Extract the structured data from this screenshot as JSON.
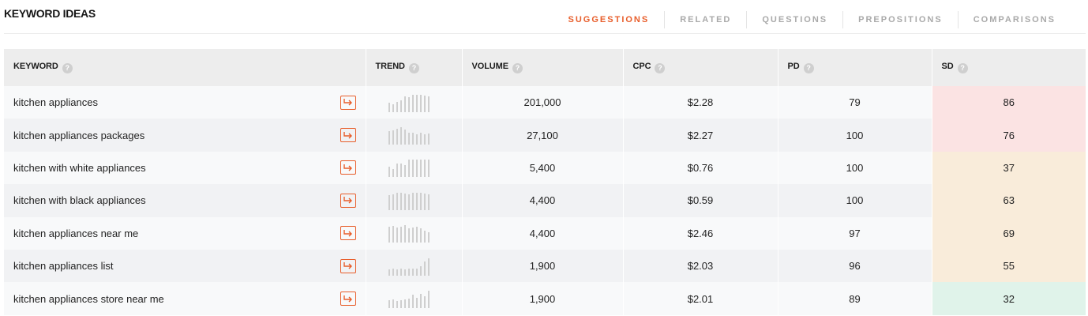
{
  "header": {
    "title": "KEYWORD IDEAS",
    "tabs": [
      {
        "label": "SUGGESTIONS",
        "active": true
      },
      {
        "label": "RELATED",
        "active": false
      },
      {
        "label": "QUESTIONS",
        "active": false
      },
      {
        "label": "PREPOSITIONS",
        "active": false
      },
      {
        "label": "COMPARISONS",
        "active": false
      }
    ]
  },
  "colors": {
    "accent": "#e85d2a",
    "sd_hard": "#fbe3e3",
    "sd_medium": "#f9ecda",
    "sd_easy": "#e0f3ea"
  },
  "table": {
    "columns": [
      {
        "label": "KEYWORD",
        "help_icon": "help-icon"
      },
      {
        "label": "TREND",
        "help_icon": "help-icon"
      },
      {
        "label": "VOLUME",
        "help_icon": "help-icon"
      },
      {
        "label": "CPC",
        "help_icon": "help-icon"
      },
      {
        "label": "PD",
        "help_icon": "help-icon"
      },
      {
        "label": "SD",
        "help_icon": "help-icon"
      }
    ],
    "rows": [
      {
        "keyword": "kitchen appliances",
        "link_icon": "open-arrow-icon",
        "trend": [
          0.55,
          0.45,
          0.6,
          0.7,
          0.9,
          0.85,
          1.0,
          1.0,
          1.0,
          0.95,
          0.9
        ],
        "volume": "201,000",
        "cpc": "$2.28",
        "pd": "79",
        "sd": "86",
        "sd_color": "#fbe3e3"
      },
      {
        "keyword": "kitchen appliances packages",
        "link_icon": "open-arrow-icon",
        "trend": [
          0.75,
          0.8,
          0.9,
          1.0,
          0.85,
          0.7,
          0.7,
          0.6,
          0.7,
          0.6,
          0.65
        ],
        "volume": "27,100",
        "cpc": "$2.27",
        "pd": "100",
        "sd": "76",
        "sd_color": "#fbe3e3"
      },
      {
        "keyword": "kitchen with white appliances",
        "link_icon": "open-arrow-icon",
        "trend": [
          0.6,
          0.45,
          0.75,
          0.75,
          0.7,
          1.0,
          1.0,
          1.0,
          1.0,
          1.0,
          1.0
        ],
        "volume": "5,400",
        "cpc": "$0.76",
        "pd": "100",
        "sd": "37",
        "sd_color": "#f9ecda"
      },
      {
        "keyword": "kitchen with black appliances",
        "link_icon": "open-arrow-icon",
        "trend": [
          0.85,
          0.9,
          1.0,
          1.0,
          0.95,
          0.9,
          1.0,
          1.0,
          1.0,
          0.95,
          0.9
        ],
        "volume": "4,400",
        "cpc": "$0.59",
        "pd": "100",
        "sd": "63",
        "sd_color": "#f9ecda"
      },
      {
        "keyword": "kitchen appliances near me",
        "link_icon": "open-arrow-icon",
        "trend": [
          0.9,
          0.95,
          0.85,
          0.9,
          1.0,
          0.8,
          0.85,
          0.9,
          0.8,
          0.7,
          0.6
        ],
        "volume": "4,400",
        "cpc": "$2.46",
        "pd": "97",
        "sd": "69",
        "sd_color": "#f9ecda"
      },
      {
        "keyword": "kitchen appliances list",
        "link_icon": "open-arrow-icon",
        "trend": [
          0.35,
          0.4,
          0.35,
          0.4,
          0.35,
          0.4,
          0.4,
          0.4,
          0.55,
          0.8,
          1.0
        ],
        "volume": "1,900",
        "cpc": "$2.03",
        "pd": "96",
        "sd": "55",
        "sd_color": "#f9ecda"
      },
      {
        "keyword": "kitchen appliances store near me",
        "link_icon": "open-arrow-icon",
        "trend": [
          0.45,
          0.5,
          0.4,
          0.45,
          0.5,
          0.55,
          0.75,
          0.6,
          0.8,
          0.7,
          1.0
        ],
        "volume": "1,900",
        "cpc": "$2.01",
        "pd": "89",
        "sd": "32",
        "sd_color": "#e0f3ea"
      }
    ]
  }
}
